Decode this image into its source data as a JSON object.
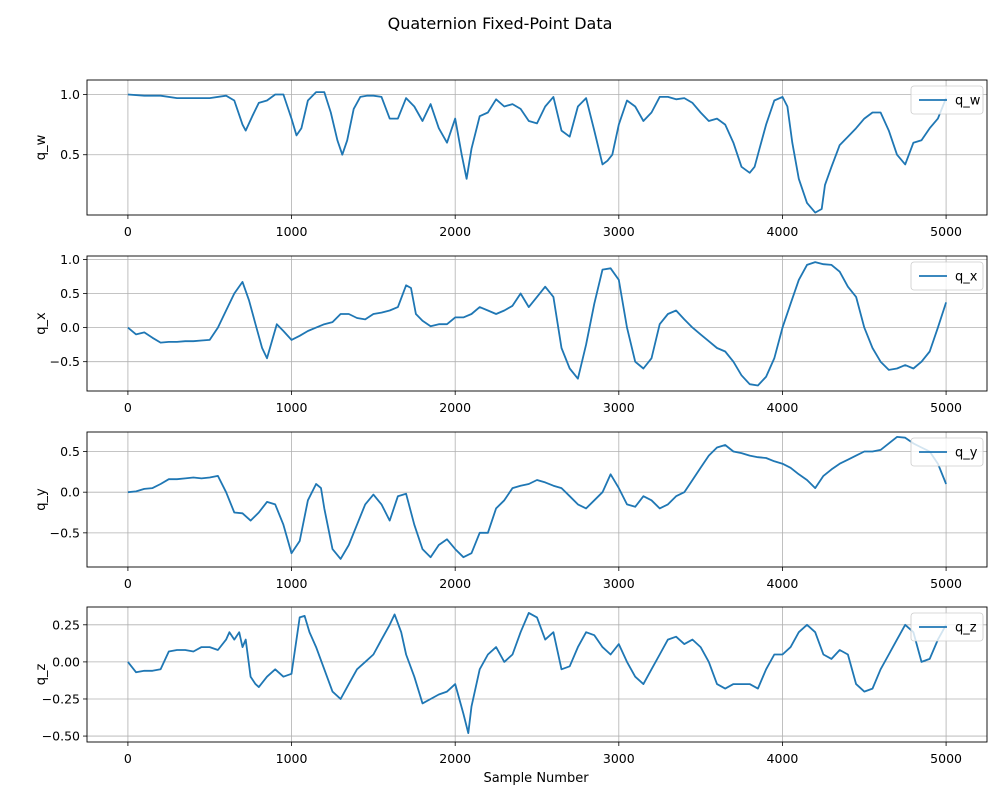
{
  "chart_data": {
    "type": "line",
    "title": "Quaternion Fixed-Point Data",
    "xlabel": "Sample Number",
    "colors": {
      "series": "#1f77b4",
      "grid": "#b0b0b0",
      "axes": "#000000"
    },
    "grid": true,
    "legend_placement": "upper right",
    "xlim": [
      -250,
      5250
    ],
    "xticks": [
      0,
      1000,
      2000,
      3000,
      4000,
      5000
    ],
    "subplots": [
      {
        "name": "q_w",
        "ylabel": "q_w",
        "legend": "q_w",
        "ylim": [
          0.0,
          1.12
        ],
        "yticks": [
          0.5,
          1.0
        ],
        "ytick_labels": [
          "0.5",
          "1.0"
        ],
        "x": [
          0,
          100,
          200,
          300,
          400,
          500,
          600,
          650,
          700,
          720,
          760,
          800,
          850,
          900,
          950,
          1000,
          1030,
          1060,
          1100,
          1150,
          1200,
          1240,
          1280,
          1310,
          1340,
          1380,
          1420,
          1460,
          1500,
          1550,
          1600,
          1650,
          1700,
          1750,
          1800,
          1850,
          1900,
          1950,
          1980,
          2000,
          2040,
          2070,
          2100,
          2150,
          2200,
          2250,
          2300,
          2350,
          2400,
          2450,
          2500,
          2550,
          2600,
          2650,
          2700,
          2750,
          2800,
          2850,
          2900,
          2930,
          2960,
          3000,
          3050,
          3100,
          3150,
          3200,
          3250,
          3300,
          3350,
          3400,
          3450,
          3500,
          3550,
          3600,
          3650,
          3700,
          3750,
          3800,
          3830,
          3860,
          3900,
          3950,
          4000,
          4030,
          4060,
          4100,
          4150,
          4200,
          4240,
          4260,
          4300,
          4350,
          4400,
          4450,
          4500,
          4550,
          4600,
          4650,
          4700,
          4750,
          4800,
          4850,
          4900,
          4950,
          5000
        ],
        "values": [
          1.0,
          0.99,
          0.99,
          0.97,
          0.97,
          0.97,
          0.99,
          0.95,
          0.75,
          0.7,
          0.82,
          0.93,
          0.95,
          1.0,
          1.0,
          0.8,
          0.66,
          0.72,
          0.95,
          1.02,
          1.02,
          0.85,
          0.62,
          0.5,
          0.62,
          0.88,
          0.98,
          0.99,
          0.99,
          0.98,
          0.8,
          0.8,
          0.97,
          0.9,
          0.78,
          0.92,
          0.72,
          0.6,
          0.72,
          0.8,
          0.5,
          0.3,
          0.55,
          0.82,
          0.85,
          0.96,
          0.9,
          0.92,
          0.88,
          0.78,
          0.76,
          0.9,
          0.98,
          0.7,
          0.65,
          0.9,
          0.97,
          0.7,
          0.42,
          0.45,
          0.5,
          0.75,
          0.95,
          0.9,
          0.78,
          0.85,
          0.98,
          0.98,
          0.96,
          0.97,
          0.93,
          0.85,
          0.78,
          0.8,
          0.75,
          0.6,
          0.4,
          0.35,
          0.4,
          0.55,
          0.75,
          0.95,
          0.98,
          0.9,
          0.6,
          0.3,
          0.1,
          0.02,
          0.05,
          0.25,
          0.4,
          0.58,
          0.65,
          0.72,
          0.8,
          0.85,
          0.85,
          0.7,
          0.5,
          0.42,
          0.6,
          0.62,
          0.72,
          0.8,
          0.97
        ]
      },
      {
        "name": "q_x",
        "ylabel": "q_x",
        "legend": "q_x",
        "ylim": [
          -0.93,
          1.05
        ],
        "yticks": [
          -0.5,
          0.0,
          0.5,
          1.0
        ],
        "ytick_labels": [
          "−0.5",
          "0.0",
          "0.5",
          "1.0"
        ],
        "x": [
          0,
          50,
          100,
          150,
          200,
          250,
          300,
          350,
          400,
          450,
          500,
          550,
          600,
          650,
          700,
          740,
          780,
          820,
          850,
          880,
          910,
          950,
          1000,
          1050,
          1100,
          1150,
          1200,
          1250,
          1300,
          1350,
          1400,
          1450,
          1500,
          1550,
          1600,
          1650,
          1700,
          1730,
          1760,
          1800,
          1850,
          1900,
          1950,
          2000,
          2050,
          2100,
          2150,
          2200,
          2250,
          2300,
          2350,
          2400,
          2450,
          2500,
          2550,
          2600,
          2650,
          2700,
          2750,
          2800,
          2850,
          2900,
          2950,
          3000,
          3050,
          3100,
          3150,
          3200,
          3250,
          3300,
          3350,
          3400,
          3450,
          3500,
          3550,
          3600,
          3650,
          3700,
          3750,
          3800,
          3850,
          3900,
          3950,
          4000,
          4050,
          4100,
          4150,
          4200,
          4250,
          4300,
          4350,
          4400,
          4450,
          4500,
          4550,
          4600,
          4650,
          4700,
          4750,
          4800,
          4850,
          4900,
          4950,
          5000
        ],
        "values": [
          0.0,
          -0.1,
          -0.07,
          -0.15,
          -0.22,
          -0.21,
          -0.21,
          -0.2,
          -0.2,
          -0.19,
          -0.18,
          0.0,
          0.25,
          0.5,
          0.67,
          0.4,
          0.05,
          -0.3,
          -0.45,
          -0.2,
          0.05,
          -0.05,
          -0.18,
          -0.12,
          -0.05,
          0.0,
          0.05,
          0.08,
          0.2,
          0.2,
          0.14,
          0.12,
          0.2,
          0.22,
          0.25,
          0.3,
          0.62,
          0.58,
          0.2,
          0.1,
          0.02,
          0.05,
          0.05,
          0.15,
          0.15,
          0.2,
          0.3,
          0.25,
          0.2,
          0.25,
          0.32,
          0.5,
          0.3,
          0.45,
          0.6,
          0.45,
          -0.3,
          -0.6,
          -0.75,
          -0.25,
          0.35,
          0.85,
          0.87,
          0.7,
          0.0,
          -0.5,
          -0.6,
          -0.45,
          0.05,
          0.2,
          0.25,
          0.12,
          0.0,
          -0.1,
          -0.2,
          -0.3,
          -0.35,
          -0.5,
          -0.7,
          -0.83,
          -0.85,
          -0.72,
          -0.45,
          0.0,
          0.35,
          0.7,
          0.92,
          0.96,
          0.93,
          0.92,
          0.82,
          0.6,
          0.45,
          0.0,
          -0.3,
          -0.5,
          -0.62,
          -0.6,
          -0.55,
          -0.6,
          -0.5,
          -0.35,
          0.0,
          0.37
        ]
      },
      {
        "name": "q_y",
        "ylabel": "q_y",
        "legend": "q_y",
        "ylim": [
          -0.92,
          0.74
        ],
        "yticks": [
          -0.5,
          0.0,
          0.5
        ],
        "ytick_labels": [
          "−0.5",
          "0.0",
          "0.5"
        ],
        "x": [
          0,
          50,
          100,
          150,
          200,
          250,
          300,
          350,
          400,
          450,
          500,
          550,
          600,
          650,
          700,
          750,
          800,
          850,
          900,
          950,
          1000,
          1050,
          1100,
          1150,
          1180,
          1200,
          1250,
          1300,
          1350,
          1400,
          1450,
          1500,
          1550,
          1600,
          1650,
          1700,
          1750,
          1800,
          1850,
          1900,
          1950,
          2000,
          2050,
          2100,
          2150,
          2200,
          2250,
          2300,
          2350,
          2400,
          2450,
          2500,
          2550,
          2600,
          2650,
          2700,
          2750,
          2800,
          2850,
          2900,
          2950,
          3000,
          3050,
          3100,
          3150,
          3200,
          3250,
          3300,
          3350,
          3400,
          3450,
          3500,
          3550,
          3600,
          3650,
          3700,
          3750,
          3800,
          3850,
          3900,
          3950,
          4000,
          4050,
          4100,
          4150,
          4200,
          4250,
          4300,
          4350,
          4400,
          4450,
          4500,
          4550,
          4600,
          4650,
          4700,
          4750,
          4800,
          4850,
          4900,
          4950,
          5000
        ],
        "values": [
          0.0,
          0.01,
          0.04,
          0.05,
          0.1,
          0.16,
          0.16,
          0.17,
          0.18,
          0.17,
          0.18,
          0.2,
          0.0,
          -0.25,
          -0.26,
          -0.35,
          -0.25,
          -0.12,
          -0.15,
          -0.4,
          -0.75,
          -0.6,
          -0.1,
          0.1,
          0.05,
          -0.2,
          -0.7,
          -0.82,
          -0.65,
          -0.4,
          -0.15,
          -0.03,
          -0.15,
          -0.35,
          -0.05,
          -0.02,
          -0.4,
          -0.7,
          -0.8,
          -0.65,
          -0.58,
          -0.7,
          -0.8,
          -0.75,
          -0.5,
          -0.5,
          -0.2,
          -0.1,
          0.05,
          0.08,
          0.1,
          0.15,
          0.12,
          0.08,
          0.05,
          -0.05,
          -0.15,
          -0.2,
          -0.1,
          0.0,
          0.22,
          0.05,
          -0.15,
          -0.18,
          -0.05,
          -0.1,
          -0.2,
          -0.15,
          -0.05,
          0.0,
          0.15,
          0.3,
          0.45,
          0.55,
          0.58,
          0.5,
          0.48,
          0.45,
          0.43,
          0.42,
          0.38,
          0.35,
          0.3,
          0.22,
          0.15,
          0.05,
          0.2,
          0.28,
          0.35,
          0.4,
          0.45,
          0.5,
          0.5,
          0.52,
          0.6,
          0.68,
          0.67,
          0.6,
          0.55,
          0.5,
          0.35,
          0.1
        ]
      },
      {
        "name": "q_z",
        "ylabel": "q_z",
        "legend": "q_z",
        "ylim": [
          -0.54,
          0.37
        ],
        "yticks": [
          -0.5,
          -0.25,
          0.0,
          0.25
        ],
        "ytick_labels": [
          "−0.50",
          "−0.25",
          "0.00",
          "0.25"
        ],
        "x": [
          0,
          50,
          100,
          150,
          200,
          250,
          300,
          350,
          400,
          450,
          500,
          550,
          600,
          620,
          650,
          680,
          700,
          720,
          750,
          780,
          800,
          850,
          900,
          950,
          1000,
          1050,
          1080,
          1110,
          1150,
          1200,
          1250,
          1300,
          1350,
          1400,
          1450,
          1500,
          1550,
          1600,
          1630,
          1670,
          1700,
          1750,
          1800,
          1850,
          1900,
          1950,
          2000,
          2050,
          2080,
          2100,
          2150,
          2200,
          2250,
          2300,
          2350,
          2400,
          2450,
          2500,
          2550,
          2600,
          2650,
          2700,
          2750,
          2800,
          2850,
          2900,
          2950,
          3000,
          3050,
          3100,
          3150,
          3200,
          3250,
          3300,
          3350,
          3400,
          3450,
          3500,
          3550,
          3600,
          3650,
          3700,
          3750,
          3800,
          3850,
          3900,
          3950,
          4000,
          4050,
          4100,
          4150,
          4200,
          4250,
          4300,
          4350,
          4400,
          4450,
          4500,
          4550,
          4600,
          4650,
          4700,
          4750,
          4800,
          4850,
          4900,
          4950,
          5000
        ],
        "values": [
          0.0,
          -0.07,
          -0.06,
          -0.06,
          -0.05,
          0.07,
          0.08,
          0.08,
          0.07,
          0.1,
          0.1,
          0.08,
          0.15,
          0.2,
          0.15,
          0.2,
          0.1,
          0.15,
          -0.1,
          -0.15,
          -0.17,
          -0.1,
          -0.05,
          -0.1,
          -0.08,
          0.3,
          0.31,
          0.2,
          0.1,
          -0.05,
          -0.2,
          -0.25,
          -0.15,
          -0.05,
          0.0,
          0.05,
          0.15,
          0.25,
          0.32,
          0.2,
          0.05,
          -0.1,
          -0.28,
          -0.25,
          -0.22,
          -0.2,
          -0.15,
          -0.35,
          -0.48,
          -0.3,
          -0.05,
          0.05,
          0.1,
          0.0,
          0.05,
          0.2,
          0.33,
          0.3,
          0.15,
          0.2,
          -0.05,
          -0.03,
          0.1,
          0.2,
          0.18,
          0.1,
          0.05,
          0.12,
          0.0,
          -0.1,
          -0.15,
          -0.05,
          0.05,
          0.15,
          0.17,
          0.12,
          0.15,
          0.1,
          0.0,
          -0.15,
          -0.18,
          -0.15,
          -0.15,
          -0.15,
          -0.18,
          -0.05,
          0.05,
          0.05,
          0.1,
          0.2,
          0.25,
          0.2,
          0.05,
          0.02,
          0.08,
          0.05,
          -0.15,
          -0.2,
          -0.18,
          -0.05,
          0.05,
          0.15,
          0.25,
          0.2,
          0.0,
          0.02,
          0.15,
          0.25
        ]
      }
    ]
  }
}
